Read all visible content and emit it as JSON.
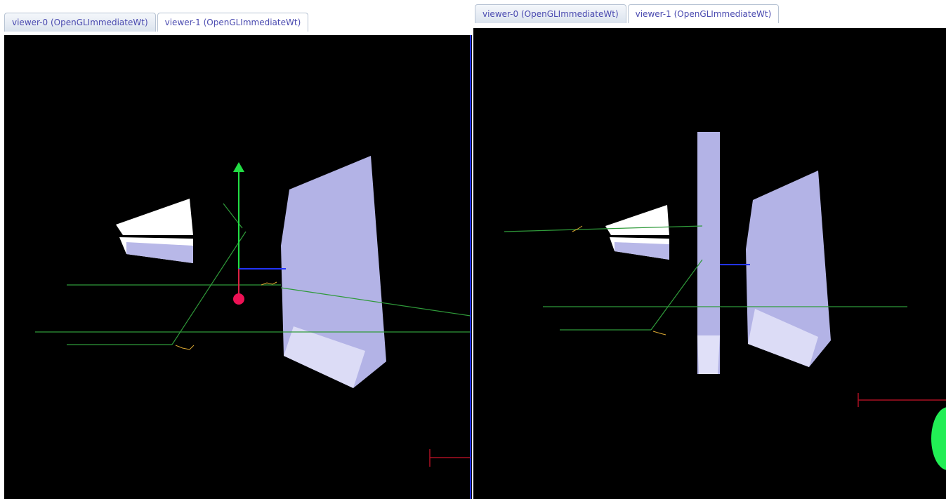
{
  "panels": [
    {
      "tabs": [
        "viewer-0 (OpenGLImmediateWt)",
        "viewer-1 (OpenGLImmediateWt)"
      ]
    },
    {
      "tabs": [
        "viewer-0 (OpenGLImmediateWt)",
        "viewer-1 (OpenGLImmediateWt)"
      ]
    }
  ]
}
